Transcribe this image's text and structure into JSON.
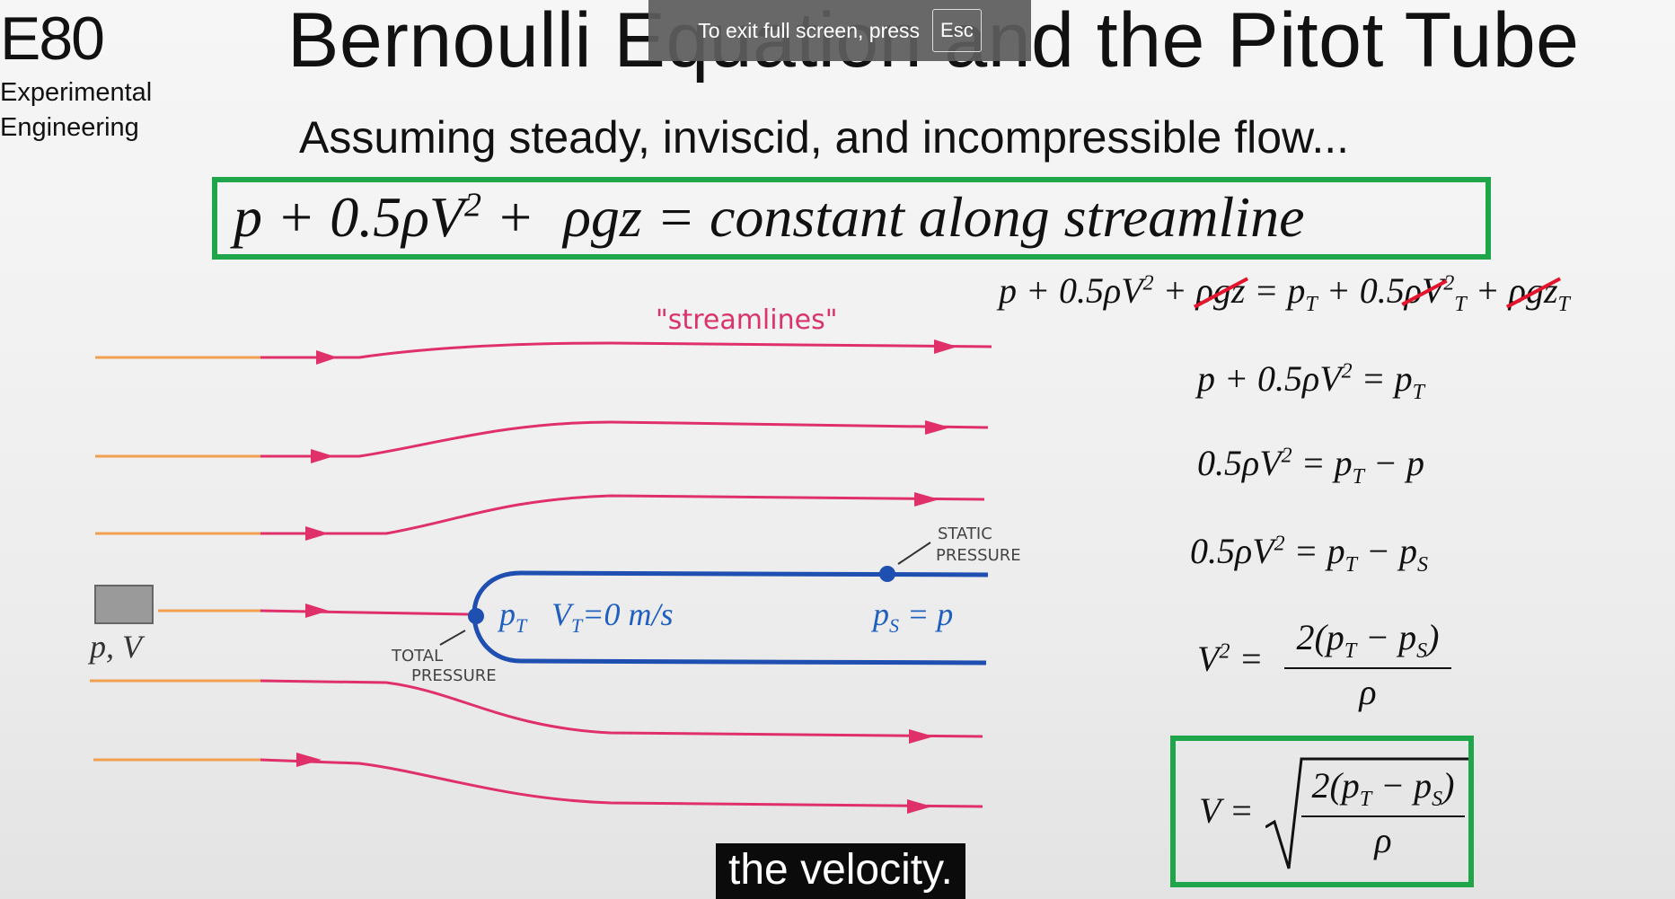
{
  "header": {
    "course_code": "E80",
    "course_line1": "Experimental",
    "course_line2": "Engineering",
    "title": "Bernoulli Equation and the Pitot Tube"
  },
  "fullscreen_banner": {
    "message": "To exit full screen, press",
    "key": "Esc"
  },
  "slide": {
    "assumption": "Assuming steady, inviscid, and incompressible flow...",
    "main_equation": "constant along streamline",
    "derivation": {
      "line2_rhs": "p",
      "final_v": "V ="
    },
    "diagram": {
      "streamlines_label": "\"streamlines\"",
      "freestream_label": "p, V",
      "total_pressure_label_1": "TOTAL",
      "total_pressure_label_2": "PRESSURE",
      "static_pressure_label_1": "STATIC",
      "static_pressure_label_2": "PRESSURE",
      "tip_label": "V",
      "tip_value": "=0 m/s",
      "static_eq": "p"
    },
    "colors": {
      "streamline": "#e0306a",
      "inflow": "#f0a050",
      "tube": "#1f4fb0",
      "box": "#1fa64a",
      "strike": "#e3152d"
    }
  },
  "subtitle": {
    "text": "the velocity."
  }
}
